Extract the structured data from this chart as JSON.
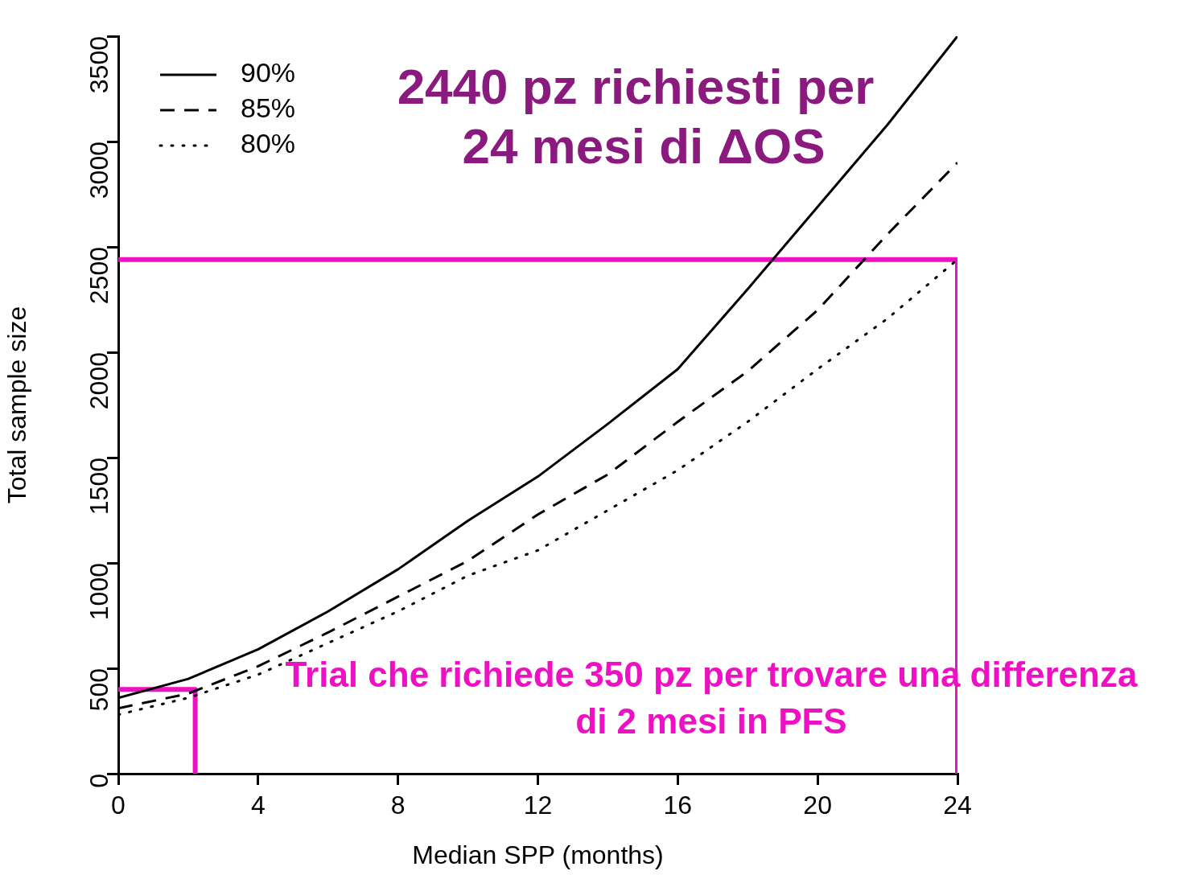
{
  "chart_data": {
    "type": "line",
    "xlabel": "Median SPP (months)",
    "ylabel": "Total sample size",
    "x": [
      0,
      2,
      4,
      6,
      8,
      10,
      12,
      14,
      16,
      18,
      20,
      22,
      24
    ],
    "series": [
      {
        "name": "90%",
        "color": "#000000",
        "line_style": "solid",
        "values": [
          360,
          450,
          590,
          770,
          970,
          1200,
          1410,
          1660,
          1920,
          2300,
          2690,
          3080,
          3500
        ]
      },
      {
        "name": "85%",
        "color": "#000000",
        "line_style": "dashed",
        "values": [
          310,
          380,
          510,
          670,
          840,
          1010,
          1230,
          1420,
          1670,
          1910,
          2200,
          2560,
          2900
        ]
      },
      {
        "name": "80%",
        "color": "#000000",
        "line_style": "dotted",
        "values": [
          280,
          360,
          470,
          620,
          770,
          940,
          1060,
          1250,
          1440,
          1670,
          1920,
          2160,
          2440
        ]
      },
      {
        "color": "#ee11c4",
        "line_style": "solid",
        "x": [
          0,
          24,
          24
        ],
        "values": [
          2440,
          2440,
          0
        ]
      },
      {
        "color": "#ee11c4",
        "line_style": "solid",
        "x": [
          0,
          2.2,
          2.2
        ],
        "values": [
          400,
          400,
          0
        ]
      }
    ],
    "xlim": [
      0,
      24
    ],
    "xticks": [
      0,
      4,
      8,
      12,
      16,
      20,
      24
    ],
    "ylim": [
      0,
      3500
    ],
    "yticks": [
      0,
      500,
      1000,
      1500,
      2000,
      2500,
      3000,
      3500
    ],
    "legend": "top left",
    "marker": "none",
    "annotations": [
      "2440 pz richiesti per\n24 mesi di ΔOS",
      "Trial che richiede 350 pz per trovare una differenza\ndi 2 mesi in PFS"
    ]
  }
}
